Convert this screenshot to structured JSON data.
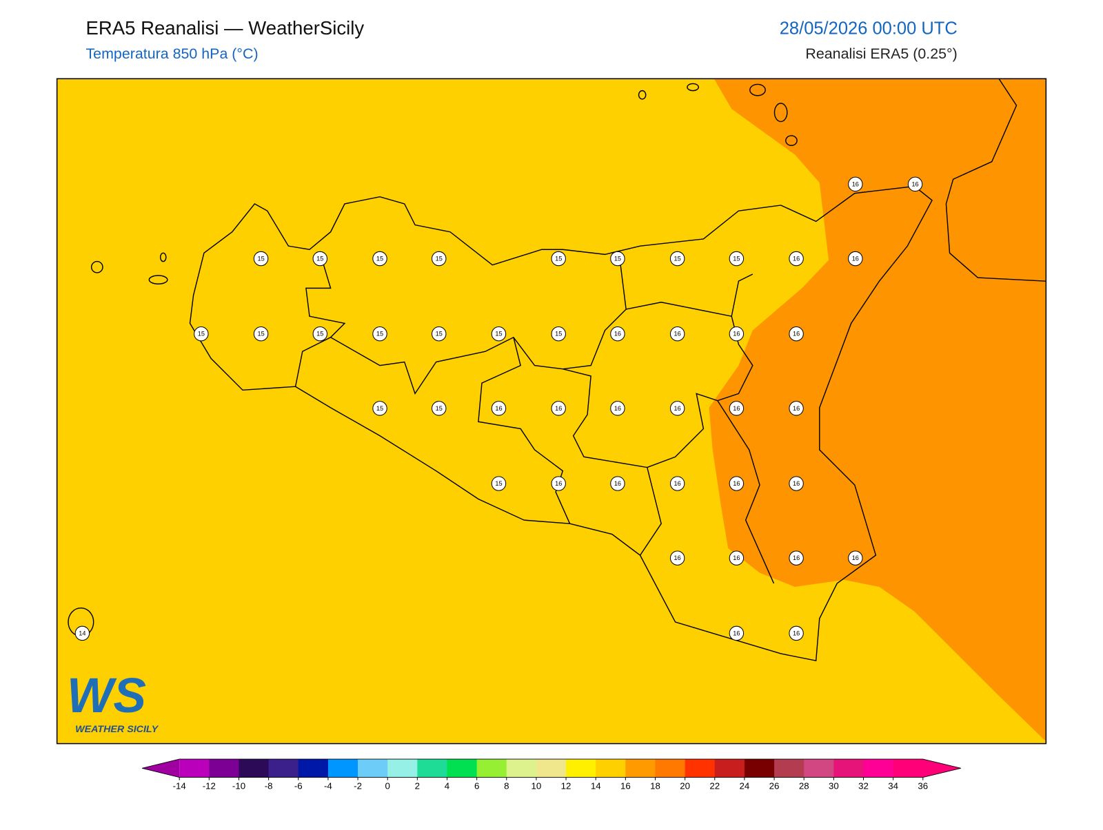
{
  "header": {
    "title": "ERA5 Reanalisi — WeatherSicily",
    "subtitle": "Temperatura 850 hPa (°C)",
    "datetime": "28/05/2026 00:00 UTC",
    "source": "Reanalisi ERA5 (0.25°)"
  },
  "map": {
    "labels": [
      16,
      16,
      15,
      15,
      15,
      15,
      15,
      15,
      15,
      15,
      16,
      16,
      15,
      15,
      15,
      15,
      15,
      15,
      15,
      16,
      16,
      16,
      16,
      15,
      15,
      16,
      16,
      16,
      16,
      16,
      16,
      15,
      16,
      16,
      16,
      16,
      16,
      16,
      16,
      16,
      16,
      14,
      16,
      16
    ]
  },
  "logo": {
    "mark": "WS",
    "name": "WEATHER SICILY"
  },
  "colorbar": {
    "ticks": [
      -14,
      -12,
      -10,
      -8,
      -6,
      -4,
      -2,
      0,
      2,
      4,
      6,
      8,
      10,
      12,
      14,
      16,
      18,
      20,
      22,
      24,
      26,
      28,
      30,
      32,
      34,
      36
    ],
    "colors": [
      "#bb00bb",
      "#7c0094",
      "#2d0a57",
      "#3b1f8a",
      "#0018a8",
      "#0096ff",
      "#6ecdf8",
      "#96f0e6",
      "#1edc96",
      "#00e050",
      "#96ef32",
      "#ddf28c",
      "#f0e68c",
      "#fff000",
      "#ffd000",
      "#ff9a00",
      "#ff7800",
      "#ff3200",
      "#c81e1e",
      "#780000",
      "#b43c50",
      "#d24682",
      "#e61478",
      "#ff0096",
      "#ff0078"
    ],
    "under": "#a000a0",
    "over": "#ff0078"
  }
}
